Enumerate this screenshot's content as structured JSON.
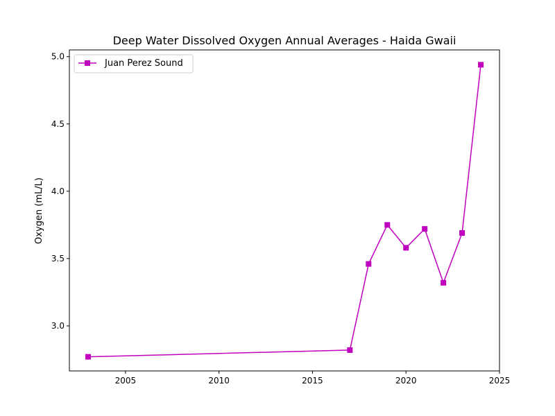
{
  "chart_data": {
    "type": "line",
    "title": "Deep Water Dissolved Oxygen Annual Averages - Haida Gwaii",
    "xlabel": "",
    "ylabel": "Oxygen (mL/L)",
    "xlim": [
      2002,
      2025
    ],
    "ylim": [
      2.665,
      5.05
    ],
    "x_ticks": [
      2005,
      2010,
      2015,
      2020,
      2025
    ],
    "y_ticks": [
      3.0,
      3.5,
      4.0,
      4.5,
      5.0
    ],
    "x_tick_labels": [
      "2005",
      "2010",
      "2015",
      "2020",
      "2025"
    ],
    "y_tick_labels": [
      "3.0",
      "3.5",
      "4.0",
      "4.5",
      "5.0"
    ],
    "grid": false,
    "legend_position": "top-left",
    "series": [
      {
        "name": "Juan Perez Sound",
        "color": "#bf00bf",
        "marker": "square",
        "x": [
          2003,
          2017,
          2018,
          2019,
          2020,
          2021,
          2022,
          2023,
          2024
        ],
        "y": [
          2.77,
          2.82,
          3.46,
          3.75,
          3.58,
          3.72,
          3.32,
          3.69,
          4.94
        ]
      }
    ]
  }
}
